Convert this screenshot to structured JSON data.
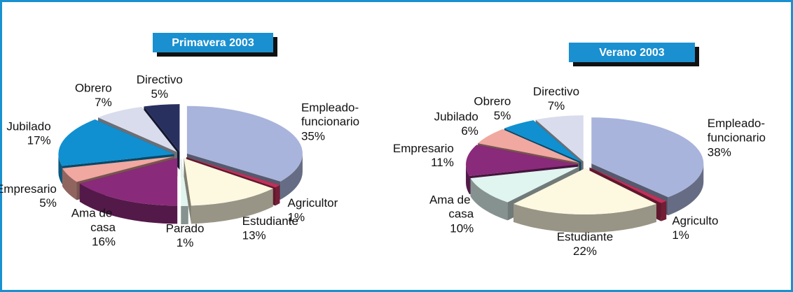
{
  "chart_data": [
    {
      "type": "pie",
      "title": "Primavera 2003",
      "categories": [
        "Empleado-funcionario",
        "Agricultor",
        "Estudiante",
        "Parado",
        "Ama de casa",
        "Empresario",
        "Jubilado",
        "Obrero",
        "Directivo"
      ],
      "values": [
        35,
        1,
        13,
        1,
        16,
        5,
        17,
        7,
        5
      ],
      "value_labels": [
        "35%",
        "1%",
        "13%",
        "1%",
        "16%",
        "5%",
        "17%",
        "7%",
        "5%"
      ],
      "colors": [
        "#a9b4dc",
        "#c0305a",
        "#fdf8e0",
        "#e0f4f0",
        "#8a2a7a",
        "#f0a8a0",
        "#1090d0",
        "#d8dcec",
        "#283060"
      ]
    },
    {
      "type": "pie",
      "title": "Verano 2003",
      "categories": [
        "Empleado-funcionario",
        "Agriculto",
        "Estudiante",
        "Ama de casa",
        "Empresario",
        "Jubilado",
        "Obrero",
        "Directivo"
      ],
      "values": [
        38,
        1,
        22,
        10,
        11,
        6,
        5,
        7
      ],
      "value_labels": [
        "38%",
        "1%",
        "22%",
        "10%",
        "11%",
        "6%",
        "5%",
        "7%"
      ],
      "colors": [
        "#a9b4dc",
        "#c0305a",
        "#fdf8e0",
        "#e0f4f0",
        "#8a2a7a",
        "#f0a8a0",
        "#1090d0",
        "#d8dcec"
      ]
    }
  ]
}
